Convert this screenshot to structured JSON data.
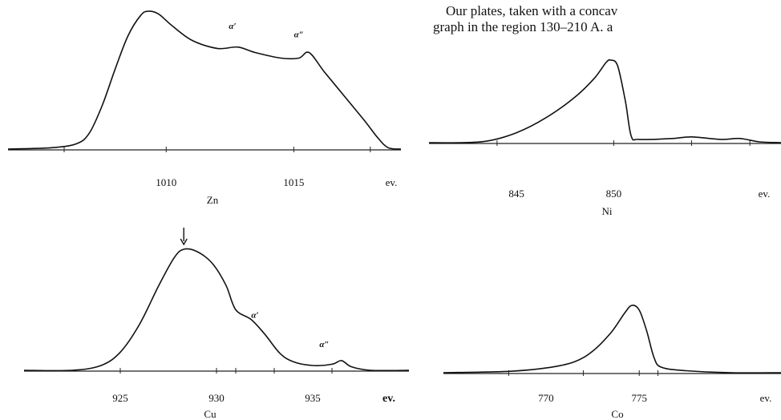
{
  "text_lines": [
    "Our plates, taken with a concav",
    "graph in the region 130–210 A. a"
  ],
  "chart_data": [
    {
      "id": "zn",
      "type": "line",
      "element_label": "Zn",
      "unit_label": "ev.",
      "unit_bold": false,
      "xlim": [
        1003.8,
        1019.2
      ],
      "ylim": [
        0,
        1
      ],
      "tick_labels": [
        {
          "value": 1010,
          "text": "1010"
        },
        {
          "value": 1015,
          "text": "1015"
        }
      ],
      "minor_ticks": [
        1006,
        1010,
        1015,
        1018
      ],
      "annotations": [
        {
          "text": "α′",
          "x": 1012.6,
          "y": 0.86
        },
        {
          "text": "α″",
          "x": 1015.2,
          "y": 0.8
        }
      ],
      "arrow_at": null,
      "series": [
        {
          "x": [
            1003.8,
            1005.5,
            1006.5,
            1007.0,
            1007.5,
            1008.0,
            1008.5,
            1009.0,
            1009.3,
            1009.7,
            1010.2,
            1011.0,
            1012.0,
            1012.8,
            1013.5,
            1014.5,
            1015.2,
            1015.6,
            1016.2,
            1017.0,
            1017.8,
            1018.3,
            1018.7,
            1019.2
          ],
          "y": [
            0.0,
            0.01,
            0.04,
            0.12,
            0.32,
            0.58,
            0.82,
            0.97,
            1.0,
            0.98,
            0.9,
            0.79,
            0.73,
            0.74,
            0.7,
            0.66,
            0.66,
            0.7,
            0.56,
            0.38,
            0.2,
            0.08,
            0.01,
            0.0
          ]
        }
      ]
    },
    {
      "id": "ni",
      "type": "line",
      "element_label": "Ni",
      "unit_label": "ev.",
      "unit_bold": false,
      "xlim": [
        840.5,
        858.6
      ],
      "ylim": [
        0,
        1
      ],
      "tick_labels": [
        {
          "value": 845,
          "text": "845"
        },
        {
          "value": 850,
          "text": "850"
        }
      ],
      "minor_ticks": [
        844,
        850,
        854,
        857
      ],
      "annotations": [],
      "arrow_at": null,
      "series": [
        {
          "x": [
            840.5,
            842.0,
            843.5,
            845.0,
            846.5,
            848.0,
            849.0,
            849.6,
            849.85,
            850.2,
            850.6,
            850.9,
            851.3,
            853.0,
            854.0,
            855.5,
            856.5,
            857.5,
            858.6
          ],
          "y": [
            0.0,
            0.0,
            0.02,
            0.12,
            0.3,
            0.55,
            0.78,
            0.97,
            1.0,
            0.93,
            0.5,
            0.08,
            0.04,
            0.05,
            0.07,
            0.04,
            0.05,
            0.01,
            0.0
          ]
        }
      ]
    },
    {
      "id": "cu",
      "type": "line",
      "element_label": "Cu",
      "unit_label": "ev.",
      "unit_bold": true,
      "xlim": [
        920.0,
        940.0
      ],
      "ylim": [
        0,
        1
      ],
      "tick_labels": [
        {
          "value": 925,
          "text": "925"
        },
        {
          "value": 930,
          "text": "930"
        },
        {
          "value": 935,
          "text": "935"
        }
      ],
      "minor_ticks": [
        925,
        930,
        931,
        933,
        936
      ],
      "annotations": [
        {
          "text": "α′",
          "x": 932.0,
          "y": 0.42
        },
        {
          "text": "α″",
          "x": 935.6,
          "y": 0.18
        }
      ],
      "arrow_at": 928.3,
      "series": [
        {
          "x": [
            920.0,
            922.5,
            924.0,
            925.0,
            926.0,
            927.0,
            927.8,
            928.3,
            929.0,
            929.8,
            930.5,
            931.0,
            931.8,
            932.5,
            933.3,
            934.0,
            935.0,
            936.0,
            936.5,
            937.0,
            938.0,
            940.0
          ],
          "y": [
            0.0,
            0.0,
            0.04,
            0.15,
            0.38,
            0.7,
            0.93,
            1.0,
            0.98,
            0.88,
            0.7,
            0.5,
            0.42,
            0.3,
            0.14,
            0.07,
            0.04,
            0.05,
            0.08,
            0.03,
            0.0,
            0.0
          ]
        }
      ]
    },
    {
      "id": "co",
      "type": "line",
      "element_label": "Co",
      "unit_label": "ev.",
      "unit_bold": false,
      "xlim": [
        764.5,
        782.6
      ],
      "ylim": [
        0,
        1
      ],
      "tick_labels": [
        {
          "value": 770,
          "text": "770"
        },
        {
          "value": 775,
          "text": "775"
        }
      ],
      "minor_ticks": [
        768,
        772,
        775,
        776
      ],
      "annotations": [],
      "arrow_at": null,
      "series": [
        {
          "x": [
            764.5,
            768.0,
            770.0,
            771.5,
            772.5,
            773.5,
            774.2,
            774.6,
            775.0,
            775.4,
            775.8,
            776.2,
            777.5,
            780.0,
            782.6
          ],
          "y": [
            0.0,
            0.02,
            0.07,
            0.16,
            0.32,
            0.6,
            0.88,
            1.0,
            0.93,
            0.62,
            0.22,
            0.08,
            0.03,
            0.0,
            0.0
          ]
        }
      ]
    }
  ]
}
